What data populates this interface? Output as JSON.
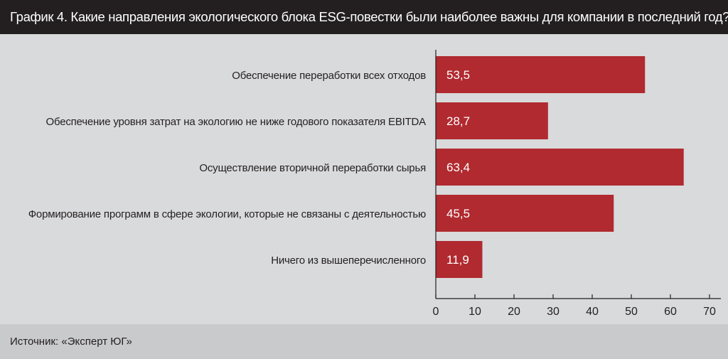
{
  "header": {
    "title": "График 4. Какие направления экологического блока ESG-повестки были наиболее важны для компании в последний год?"
  },
  "footer": {
    "source": "Источник: «Эксперт ЮГ»"
  },
  "colors": {
    "bar": "#b02a30",
    "plot_background": "#d9dadb",
    "header_background": "#231f20"
  },
  "chart_data": {
    "type": "bar",
    "orientation": "horizontal",
    "categories": [
      "Обеспечение переработки всех отходов",
      "Обеспечение уровня затрат на экологию не ниже годового показателя EBITDA",
      "Осуществление вторичной переработки сырья",
      "Формирование программ в сфере экологии, которые не связаны с деятельностью",
      "Ничего из вышеперечисленного"
    ],
    "values": [
      53.5,
      28.7,
      63.4,
      45.5,
      11.9
    ],
    "value_labels": [
      "53,5",
      "28,7",
      "63,4",
      "45,5",
      "11,9"
    ],
    "xlim": [
      0,
      70
    ],
    "x_ticks": [
      0,
      10,
      20,
      30,
      40,
      50,
      60,
      70
    ],
    "grid": false,
    "legend": "none"
  }
}
